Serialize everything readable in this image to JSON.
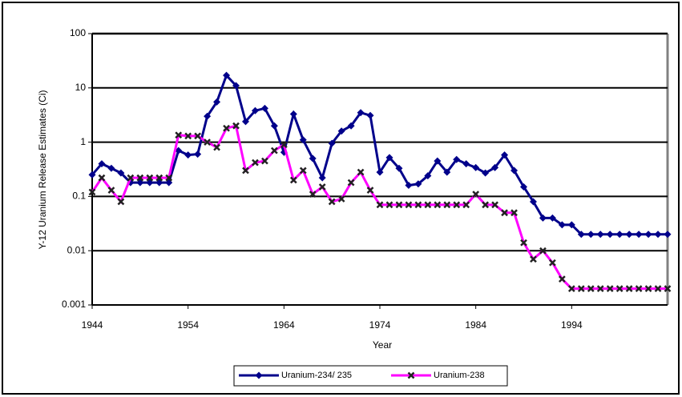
{
  "chart_data": {
    "type": "line",
    "y_label": "Y-12 Uranium Release Estimates (Ci)",
    "x_label": "Year",
    "x": [
      1944,
      1945,
      1946,
      1947,
      1948,
      1949,
      1950,
      1951,
      1952,
      1953,
      1954,
      1955,
      1956,
      1957,
      1958,
      1959,
      1960,
      1961,
      1962,
      1963,
      1964,
      1965,
      1966,
      1967,
      1968,
      1969,
      1970,
      1971,
      1972,
      1973,
      1974,
      1975,
      1976,
      1977,
      1978,
      1979,
      1980,
      1981,
      1982,
      1983,
      1984,
      1985,
      1986,
      1987,
      1988,
      1989,
      1990,
      1991,
      1992,
      1993,
      1994,
      1995,
      1996,
      1997,
      1998,
      1999,
      2000,
      2001,
      2002,
      2003,
      2004
    ],
    "series": [
      {
        "name": "Uranium-234/ 235",
        "color": "#00008b",
        "marker": "diamond",
        "values": [
          0.25,
          0.4,
          0.33,
          0.27,
          0.18,
          0.18,
          0.18,
          0.18,
          0.18,
          0.7,
          0.58,
          0.6,
          3,
          5.5,
          17,
          11,
          2.4,
          3.8,
          4.2,
          2,
          0.65,
          3.3,
          1.1,
          0.5,
          0.22,
          0.95,
          1.6,
          2,
          3.5,
          3.1,
          0.28,
          0.52,
          0.33,
          0.16,
          0.17,
          0.24,
          0.45,
          0.28,
          0.48,
          0.4,
          0.34,
          0.27,
          0.34,
          0.58,
          0.3,
          0.15,
          0.08,
          0.04,
          0.04,
          0.03,
          0.03,
          0.02,
          0.02,
          0.02,
          0.02,
          0.02,
          0.02,
          0.02,
          0.02,
          0.02,
          0.02
        ]
      },
      {
        "name": "Uranium-238",
        "color": "#ff00ff",
        "marker": "x",
        "values": [
          0.12,
          0.22,
          0.13,
          0.08,
          0.22,
          0.22,
          0.22,
          0.22,
          0.22,
          1.35,
          1.3,
          1.3,
          1,
          0.8,
          1.8,
          2,
          0.3,
          0.42,
          0.45,
          0.7,
          0.9,
          0.2,
          0.3,
          0.11,
          0.15,
          0.08,
          0.09,
          0.18,
          0.28,
          0.13,
          0.07,
          0.07,
          0.07,
          0.07,
          0.07,
          0.07,
          0.07,
          0.07,
          0.07,
          0.07,
          0.11,
          0.07,
          0.07,
          0.05,
          0.05,
          0.014,
          0.007,
          0.01,
          0.006,
          0.003,
          0.002,
          0.002,
          0.002,
          0.002,
          0.002,
          0.002,
          0.002,
          0.002,
          0.002,
          0.002,
          0.002
        ]
      }
    ],
    "xlim": [
      1944,
      2004
    ],
    "xticks": [
      1944,
      1954,
      1964,
      1974,
      1984,
      1994
    ],
    "ylim": [
      0.001,
      100
    ],
    "yticks": [
      0.001,
      0.01,
      0.1,
      1,
      10,
      100
    ],
    "log_y": true,
    "grid": true,
    "legend": "bottom"
  }
}
